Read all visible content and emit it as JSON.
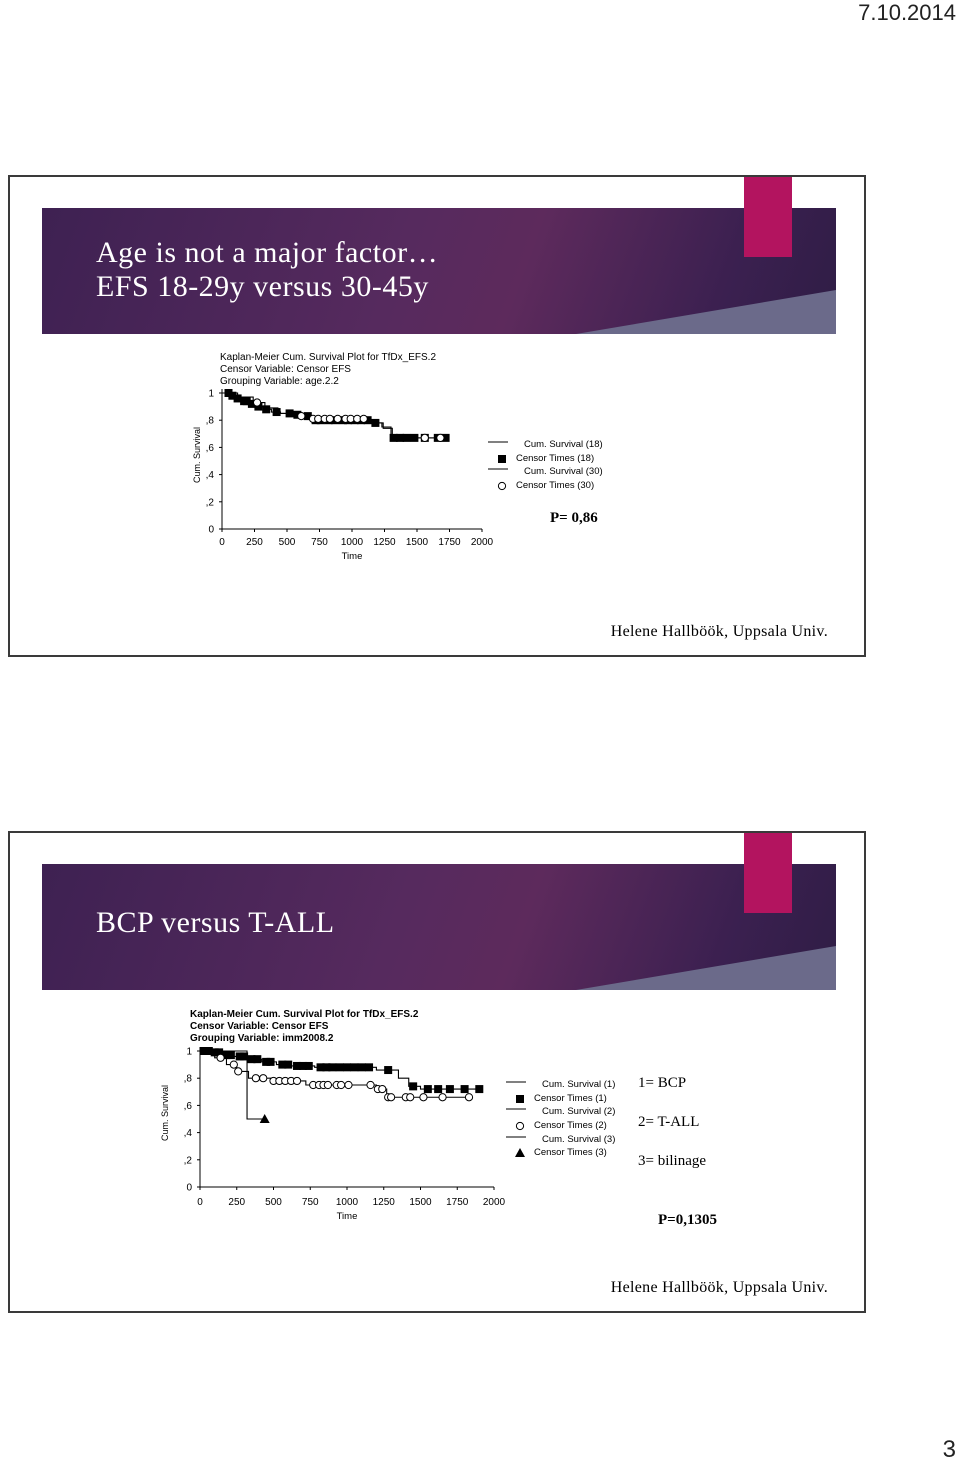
{
  "page": {
    "date": "7.10.2014",
    "number": "3"
  },
  "slides": [
    {
      "title_lines": [
        "Age is not a major factor…",
        "EFS 18-29y versus 30-45y"
      ],
      "km_header": [
        "Kaplan-Meier Cum. Survival Plot for TfDx_EFS.2",
        "Censor Variable: Censor EFS",
        "Grouping Variable: age.2.2"
      ],
      "pvalue": "P= 0,86",
      "credit": "Helene Hallböök, Uppsala Univ.",
      "chart_data": {
        "type": "line",
        "ylabel": "Cum. Survival",
        "xlabel": "Time",
        "x_ticks": [
          "0",
          "250",
          "500",
          "750",
          "1000",
          "1250",
          "1500",
          "1750",
          "2000"
        ],
        "y_ticks": [
          "0",
          ",2",
          ",4",
          ",6",
          ",8",
          "1"
        ],
        "xlim": [
          0,
          2000
        ],
        "ylim": [
          0,
          1
        ],
        "series": [
          {
            "name": "Cum. Survival (18)",
            "censor_name": "Censor Times (18)",
            "censor_marker": "square",
            "steps": [
              [
                0,
                1.0
              ],
              [
                60,
                0.98
              ],
              [
                110,
                0.96
              ],
              [
                150,
                0.94
              ],
              [
                210,
                0.92
              ],
              [
                260,
                0.9
              ],
              [
                320,
                0.88
              ],
              [
                380,
                0.86
              ],
              [
                450,
                0.85
              ],
              [
                540,
                0.84
              ],
              [
                640,
                0.83
              ],
              [
                700,
                0.8
              ],
              [
                1150,
                0.78
              ],
              [
                1230,
                0.75
              ],
              [
                1300,
                0.67
              ],
              [
                1750,
                0.67
              ]
            ],
            "censors": [
              50,
              80,
              120,
              170,
              190,
              230,
              280,
              340,
              420,
              520,
              580,
              660,
              720,
              760,
              820,
              870,
              930,
              970,
              1020,
              1070,
              1120,
              1180,
              1320,
              1370,
              1420,
              1480,
              1560,
              1660,
              1720
            ]
          },
          {
            "name": "Cum. Survival (30)",
            "censor_name": "Censor Times (30)",
            "censor_marker": "circle",
            "steps": [
              [
                0,
                1.0
              ],
              [
                120,
                0.97
              ],
              [
                240,
                0.93
              ],
              [
                330,
                0.89
              ],
              [
                430,
                0.85
              ],
              [
                560,
                0.83
              ],
              [
                700,
                0.81
              ],
              [
                1130,
                0.78
              ],
              [
                1240,
                0.74
              ],
              [
                1310,
                0.67
              ],
              [
                1750,
                0.67
              ]
            ],
            "censors": [
              270,
              610,
              700,
              740,
              790,
              830,
              890,
              950,
              990,
              1040,
              1090,
              1560,
              1680
            ]
          }
        ]
      }
    },
    {
      "title_lines": [
        "BCP versus T-ALL"
      ],
      "km_header": [
        "Kaplan-Meier Cum. Survival Plot for TfDx_EFS.2",
        "Censor Variable: Censor EFS",
        "Grouping Variable: imm2008.2"
      ],
      "pvalue": "P=0,1305",
      "group_labels": [
        "1= BCP",
        "2= T-ALL",
        "3= bilinage"
      ],
      "credit": "Helene Hallböök, Uppsala Univ.",
      "chart_data": {
        "type": "line",
        "ylabel": "Cum. Survival",
        "xlabel": "Time",
        "x_ticks": [
          "0",
          "250",
          "500",
          "750",
          "1000",
          "1250",
          "1500",
          "1750",
          "2000"
        ],
        "y_ticks": [
          "0",
          ",2",
          ",4",
          ",6",
          ",8",
          "1"
        ],
        "xlim": [
          0,
          2000
        ],
        "ylim": [
          0,
          1
        ],
        "series": [
          {
            "name": "Cum. Survival (1)",
            "censor_name": "Censor Times (1)",
            "censor_marker": "square",
            "steps": [
              [
                0,
                1.0
              ],
              [
                80,
                0.99
              ],
              [
                150,
                0.97
              ],
              [
                230,
                0.96
              ],
              [
                320,
                0.94
              ],
              [
                420,
                0.92
              ],
              [
                520,
                0.9
              ],
              [
                620,
                0.89
              ],
              [
                780,
                0.88
              ],
              [
                1200,
                0.86
              ],
              [
                1350,
                0.8
              ],
              [
                1420,
                0.74
              ],
              [
                1500,
                0.72
              ],
              [
                1900,
                0.72
              ]
            ],
            "censors": [
              30,
              60,
              100,
              130,
              180,
              210,
              270,
              300,
              350,
              390,
              450,
              480,
              560,
              600,
              660,
              700,
              740,
              820,
              860,
              900,
              950,
              1000,
              1050,
              1100,
              1150,
              1280,
              1450,
              1550,
              1620,
              1700,
              1800,
              1900
            ]
          },
          {
            "name": "Cum. Survival (2)",
            "censor_name": "Censor Times (2)",
            "censor_marker": "circle",
            "steps": [
              [
                0,
                1.0
              ],
              [
                100,
                0.95
              ],
              [
                180,
                0.9
              ],
              [
                250,
                0.85
              ],
              [
                330,
                0.8
              ],
              [
                480,
                0.78
              ],
              [
                720,
                0.75
              ],
              [
                1200,
                0.72
              ],
              [
                1270,
                0.66
              ],
              [
                1850,
                0.66
              ]
            ],
            "censors": [
              140,
              230,
              260,
              380,
              430,
              500,
              540,
              580,
              620,
              660,
              770,
              810,
              840,
              870,
              930,
              960,
              1010,
              1160,
              1210,
              1240,
              1280,
              1300,
              1400,
              1430,
              1520,
              1650,
              1830
            ]
          },
          {
            "name": "Cum. Survival (3)",
            "censor_name": "Censor Times (3)",
            "censor_marker": "triangle",
            "steps": [
              [
                0,
                1.0
              ],
              [
                320,
                1.0
              ],
              [
                320,
                0.5
              ],
              [
                440,
                0.5
              ]
            ],
            "censors": [
              440
            ]
          }
        ]
      }
    }
  ]
}
